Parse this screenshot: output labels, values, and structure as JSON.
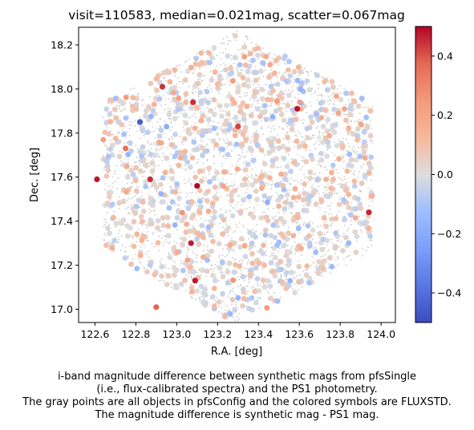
{
  "chart_data": {
    "type": "scatter",
    "title": "visit=110583, median=0.021mag, scatter=0.067mag",
    "xlabel": "R.A. [deg]",
    "ylabel": "Dec. [deg]",
    "xlim": [
      122.52,
      124.07
    ],
    "ylim": [
      16.94,
      18.28
    ],
    "xticks": [
      "122.6",
      "122.8",
      "123.0",
      "123.2",
      "123.4",
      "123.6",
      "123.8",
      "124.0"
    ],
    "yticks": [
      "17.0",
      "17.2",
      "17.4",
      "17.6",
      "17.8",
      "18.0",
      "18.2"
    ],
    "colorbar": {
      "cmap": "coolwarm",
      "range": [
        -0.5,
        0.5
      ],
      "ticks": [
        "−0.4",
        "−0.2",
        "0.0",
        "0.2",
        "0.4"
      ],
      "low_color": "#3b4cc0",
      "mid_color": "#dddddd",
      "high_color": "#b40426"
    },
    "grid": false,
    "gray_points_color": "#c8c8c8",
    "footprint": "hexagon",
    "field_center": [
      123.3,
      17.6
    ],
    "highlighted_points": [
      {
        "x": 122.82,
        "y": 17.85,
        "v": -0.45
      },
      {
        "x": 122.61,
        "y": 17.59,
        "v": 0.48
      },
      {
        "x": 122.87,
        "y": 17.59,
        "v": 0.45
      },
      {
        "x": 122.93,
        "y": 18.01,
        "v": 0.44
      },
      {
        "x": 123.08,
        "y": 17.94,
        "v": 0.45
      },
      {
        "x": 123.1,
        "y": 17.56,
        "v": 0.5
      },
      {
        "x": 123.07,
        "y": 17.3,
        "v": 0.47
      },
      {
        "x": 123.09,
        "y": 17.13,
        "v": 0.48
      },
      {
        "x": 123.3,
        "y": 17.83,
        "v": 0.42
      },
      {
        "x": 123.59,
        "y": 17.91,
        "v": 0.48
      },
      {
        "x": 123.94,
        "y": 17.44,
        "v": 0.46
      },
      {
        "x": 122.75,
        "y": 17.73,
        "v": 0.35
      },
      {
        "x": 122.9,
        "y": 17.01,
        "v": 0.38
      }
    ]
  },
  "caption": {
    "line1": "i-band magnitude difference between synthetic mags from pfsSingle",
    "line2": "(i.e., flux-calibrated spectra) and the PS1 photometry.",
    "line3": "The gray points are all objects in pfsConfig and the colored symbols are FLUXSTD.",
    "line4": "The magnitude difference is synthetic mag - PS1 mag."
  }
}
